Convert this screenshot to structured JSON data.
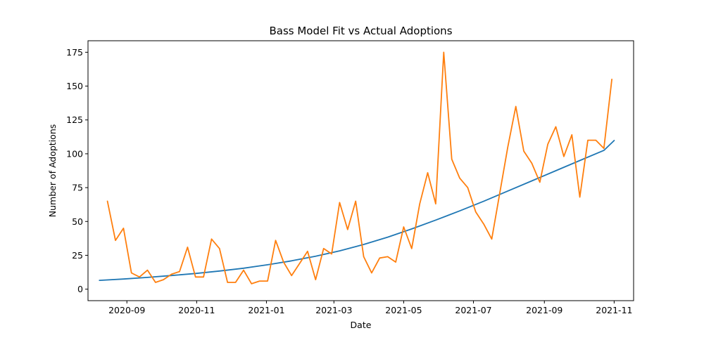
{
  "chart_data": {
    "type": "line",
    "title": "Bass Model Fit vs Actual Adoptions",
    "xlabel": "Date",
    "ylabel": "Number of Adoptions",
    "xlim": [
      "2020-07-29",
      "2021-11-18"
    ],
    "ylim": [
      -8.5,
      183.5
    ],
    "grid": false,
    "legend": "none",
    "x_ticks": [
      "2020-09",
      "2020-11",
      "2021-01",
      "2021-03",
      "2021-05",
      "2021-07",
      "2021-09",
      "2021-11"
    ],
    "y_ticks": [
      0,
      25,
      50,
      75,
      100,
      125,
      150,
      175
    ],
    "series": [
      {
        "color": "#1f77b4",
        "x": [
          "2020-08-08",
          "2020-08-29",
          "2020-09-19",
          "2020-10-10",
          "2020-10-31",
          "2020-11-21",
          "2020-12-12",
          "2021-01-02",
          "2021-01-23",
          "2021-02-13",
          "2021-03-06",
          "2021-03-27",
          "2021-04-17",
          "2021-05-08",
          "2021-05-29",
          "2021-06-19",
          "2021-07-10",
          "2021-07-31",
          "2021-08-21",
          "2021-09-11",
          "2021-10-02",
          "2021-10-23",
          "2021-11-01"
        ],
        "y": [
          6.5,
          7.5,
          8.7,
          10.1,
          11.6,
          13.4,
          15.5,
          18.0,
          20.9,
          24.3,
          28.3,
          33.0,
          38.4,
          44.5,
          51.0,
          57.8,
          65.0,
          72.5,
          80.0,
          87.5,
          95.0,
          102.5,
          109.8
        ]
      },
      {
        "color": "#ff7f0e",
        "x": [
          "2020-08-15",
          "2020-08-22",
          "2020-08-29",
          "2020-09-05",
          "2020-09-12",
          "2020-09-19",
          "2020-09-26",
          "2020-10-03",
          "2020-10-10",
          "2020-10-17",
          "2020-10-24",
          "2020-10-31",
          "2020-11-07",
          "2020-11-14",
          "2020-11-21",
          "2020-11-28",
          "2020-12-05",
          "2020-12-12",
          "2020-12-19",
          "2020-12-26",
          "2021-01-02",
          "2021-01-09",
          "2021-01-16",
          "2021-01-23",
          "2021-01-30",
          "2021-02-06",
          "2021-02-13",
          "2021-02-20",
          "2021-02-27",
          "2021-03-06",
          "2021-03-13",
          "2021-03-20",
          "2021-03-27",
          "2021-04-03",
          "2021-04-10",
          "2021-04-17",
          "2021-04-24",
          "2021-05-01",
          "2021-05-08",
          "2021-05-15",
          "2021-05-22",
          "2021-05-29",
          "2021-06-05",
          "2021-06-12",
          "2021-06-19",
          "2021-06-26",
          "2021-07-03",
          "2021-07-10",
          "2021-07-17",
          "2021-07-24",
          "2021-07-31",
          "2021-08-07",
          "2021-08-14",
          "2021-08-21",
          "2021-08-28",
          "2021-09-04",
          "2021-09-11",
          "2021-09-18",
          "2021-09-25",
          "2021-10-02",
          "2021-10-09",
          "2021-10-16",
          "2021-10-23",
          "2021-10-30"
        ],
        "y": [
          65,
          36,
          45,
          12,
          9,
          14,
          5,
          7,
          11,
          13,
          31,
          9,
          9,
          37,
          30,
          5,
          5,
          14,
          4,
          6,
          6,
          36,
          20,
          10,
          19,
          28,
          7,
          30,
          26,
          64,
          44,
          65,
          24,
          12,
          23,
          24,
          20,
          46,
          30,
          63,
          86,
          63,
          175,
          96,
          82,
          75,
          57,
          48,
          37,
          71,
          105,
          135,
          102,
          93,
          79,
          107,
          120,
          98,
          114,
          68,
          110,
          110,
          104,
          155
        ]
      }
    ]
  }
}
